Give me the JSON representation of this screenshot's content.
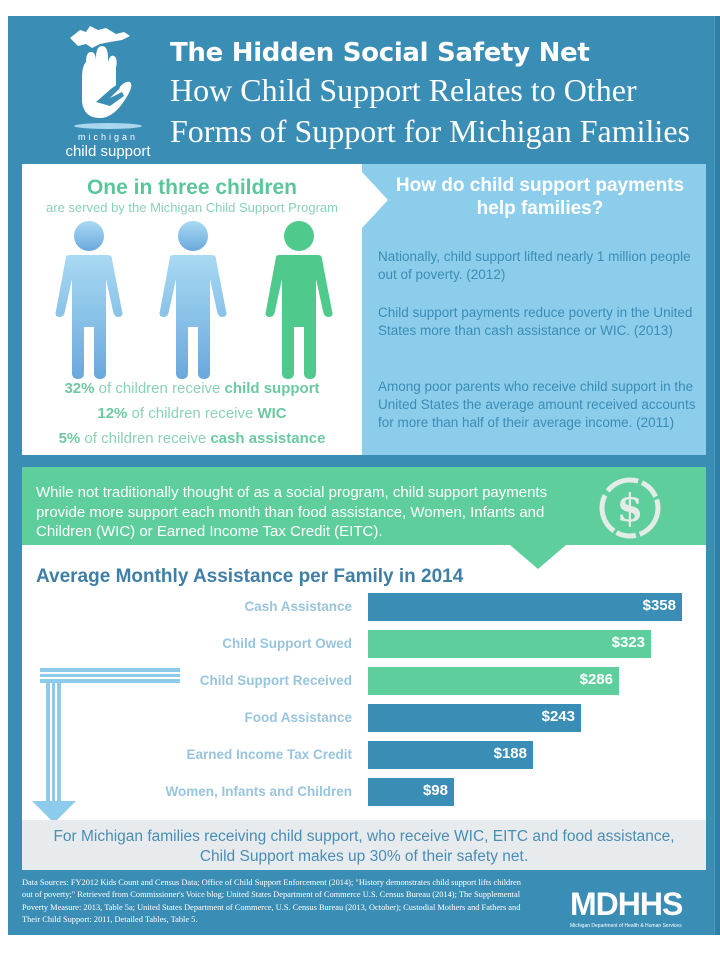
{
  "header": {
    "title": "The Hidden Social Safety Net",
    "subtitle_line1": "How Child Support Relates to Other",
    "subtitle_line2": "Forms of Support for Michigan Families",
    "logo_line1": "michigan",
    "logo_line2": "child support"
  },
  "stats": {
    "headline": "One in three children",
    "subheadline": "are served by the Michigan Child Support Program",
    "figures": [
      {
        "icon": "person-icon",
        "color": "#8cc9ec"
      },
      {
        "icon": "person-icon",
        "color": "#8cc9ec"
      },
      {
        "icon": "person-icon",
        "color": "#4fc98c"
      }
    ],
    "lines": [
      {
        "pct": "32%",
        "text": " of children receive ",
        "bold": "child support"
      },
      {
        "pct": "12%",
        "text": " of children receive ",
        "bold": "WIC"
      },
      {
        "pct": "5%",
        "text": " of children receive ",
        "bold": "cash assistance"
      }
    ]
  },
  "help": {
    "title": "How do child support payments help families?",
    "paragraphs": [
      "Nationally, child support lifted nearly 1 million people out of poverty. (2012)",
      "Child support payments reduce poverty in the United States more than cash assistance or WIC. (2013)",
      "Among poor parents who receive child support in the United States the average amount received accounts for more than half of their average income. (2011)"
    ]
  },
  "banner": {
    "text": "While not traditionally thought of as a social program, child support payments provide more support each month than food assistance, Women, Infants and Children (WIC) or Earned Income Tax Credit (EITC).",
    "icon": "dollar-icon"
  },
  "chart_data": {
    "type": "bar",
    "orientation": "horizontal",
    "title": "Average Monthly Assistance per Family in 2014",
    "categories": [
      "Cash Assistance",
      "Child Support Owed",
      "Child Support Received",
      "Food Assistance",
      "Earned Income Tax Credit",
      "Women, Infants and Children"
    ],
    "values": [
      358,
      323,
      286,
      243,
      188,
      98
    ],
    "value_labels": [
      "$358",
      "$323",
      "$286",
      "$243",
      "$188",
      "$98"
    ],
    "colors": [
      "#3a8db5",
      "#5ecf9c",
      "#5ecf9c",
      "#3a8db5",
      "#3a8db5",
      "#3a8db5"
    ],
    "xlim": [
      0,
      358
    ],
    "unit": "USD per month",
    "grid": false,
    "legend": "none"
  },
  "takeaway": {
    "line1": "For Michigan families receiving child support, who receive WIC, EITC and food assistance,",
    "line2": "Child Support makes up 30% of their safety net."
  },
  "footer": {
    "sources": "Data Sources: FY2012 Kids Count and Census Data; Office of Child Support Enforcement (2014); \"History demonstrates child support lifts children out of poverty;\" Retrieved from Commissioner's Voice blog; United States Department of Commerce U.S. Census Bureau (2014); The Supplemental Poverty Measure: 2013, Table 5a; United States Department of Commerce, U.S. Census Bureau (2013, October); Custodial Mothers and Fathers and Their Child Support: 2011, Detailed Tables, Table 5.",
    "logo_word": "MDHHS",
    "logo_sub": "Michigan Department of Health & Human Services"
  },
  "colors": {
    "brand_blue": "#3a8db5",
    "light_blue": "#8dcdec",
    "green": "#5ecf9c",
    "grey_band": "#e7ebee"
  }
}
